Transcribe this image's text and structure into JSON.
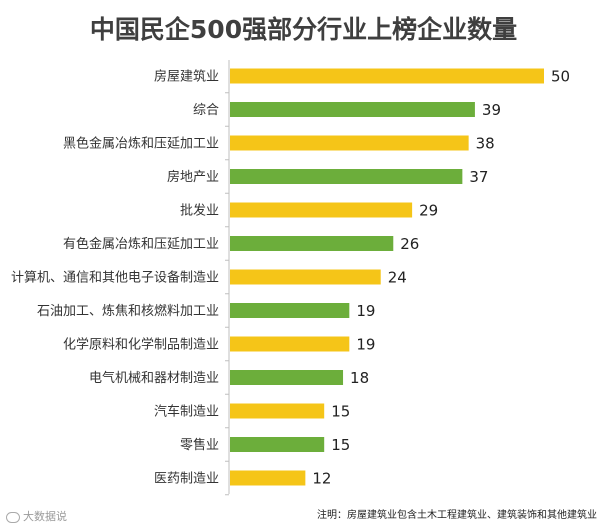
{
  "chart_data": {
    "type": "bar",
    "orientation": "horizontal",
    "title": "中国民企500强部分行业上榜企业数量",
    "categories": [
      "房屋建筑业",
      "综合",
      "黑色金属冶炼和压延加工业",
      "房地产业",
      "批发业",
      "有色金属冶炼和压延加工业",
      "计算机、通信和其他电子设备制造业",
      "石油加工、炼焦和核燃料加工业",
      "化学原料和化学制品制造业",
      "电气机械和器材制造业",
      "汽车制造业",
      "零售业",
      "医药制造业"
    ],
    "values": [
      50,
      39,
      38,
      37,
      29,
      26,
      24,
      19,
      19,
      18,
      15,
      15,
      12
    ],
    "bar_colors": [
      "#f5c518",
      "#6cae3b",
      "#f5c518",
      "#6cae3b",
      "#f5c518",
      "#6cae3b",
      "#f5c518",
      "#6cae3b",
      "#f5c518",
      "#6cae3b",
      "#f5c518",
      "#6cae3b",
      "#f5c518"
    ],
    "xlim": [
      0,
      50
    ],
    "xlabel": "",
    "ylabel": "",
    "grid": false,
    "legend": "none"
  },
  "footnote": "注明：房屋建筑业包含土木工程建筑业、建筑装饰和其他建筑业",
  "watermark": "大数据说"
}
